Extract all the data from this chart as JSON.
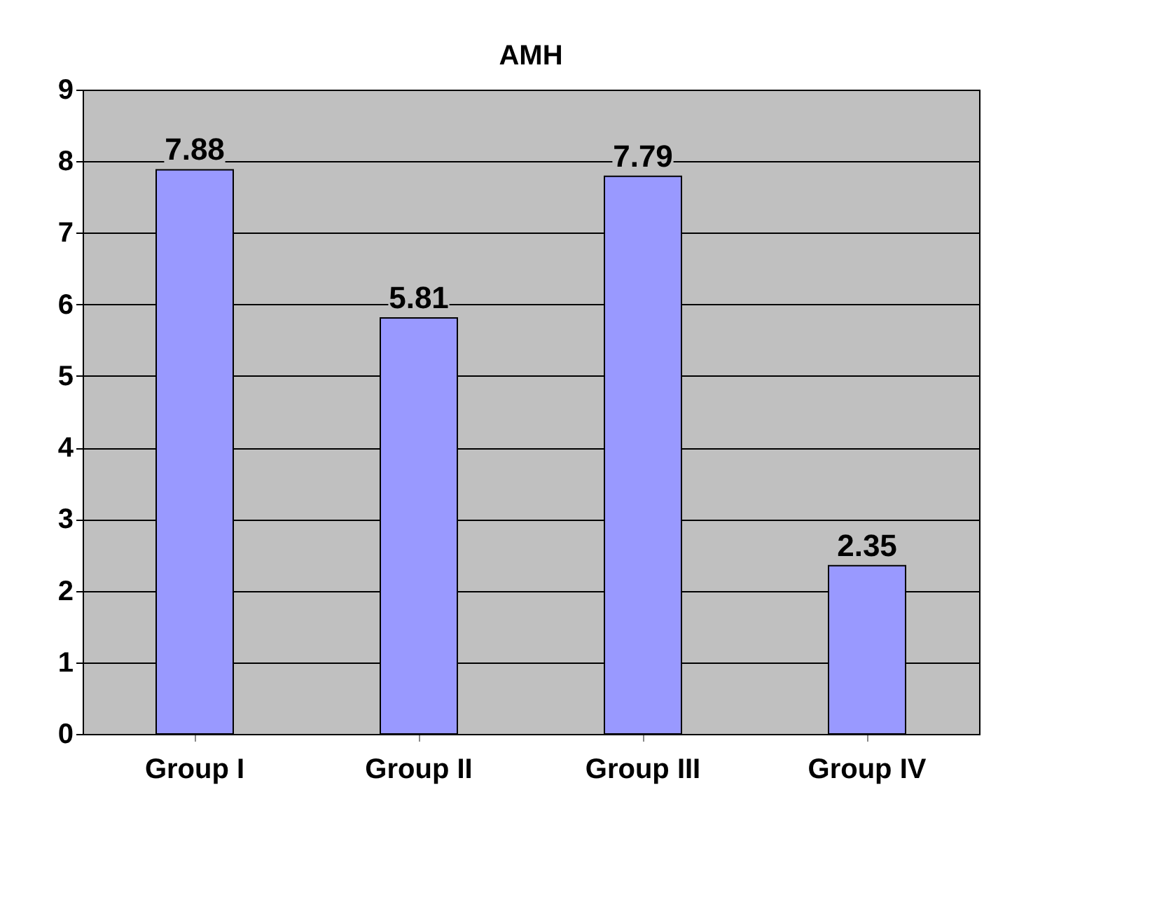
{
  "chart_data": {
    "type": "bar",
    "title": "AMH",
    "categories": [
      "Group I",
      "Group II",
      "Group III",
      "Group IV"
    ],
    "values": [
      7.88,
      5.81,
      7.79,
      2.35
    ],
    "color": "#9999ff",
    "ylim": [
      0,
      9
    ],
    "yticks": [
      0,
      1,
      2,
      3,
      4,
      5,
      6,
      7,
      8,
      9
    ],
    "grid": "y",
    "data_labels": true
  }
}
